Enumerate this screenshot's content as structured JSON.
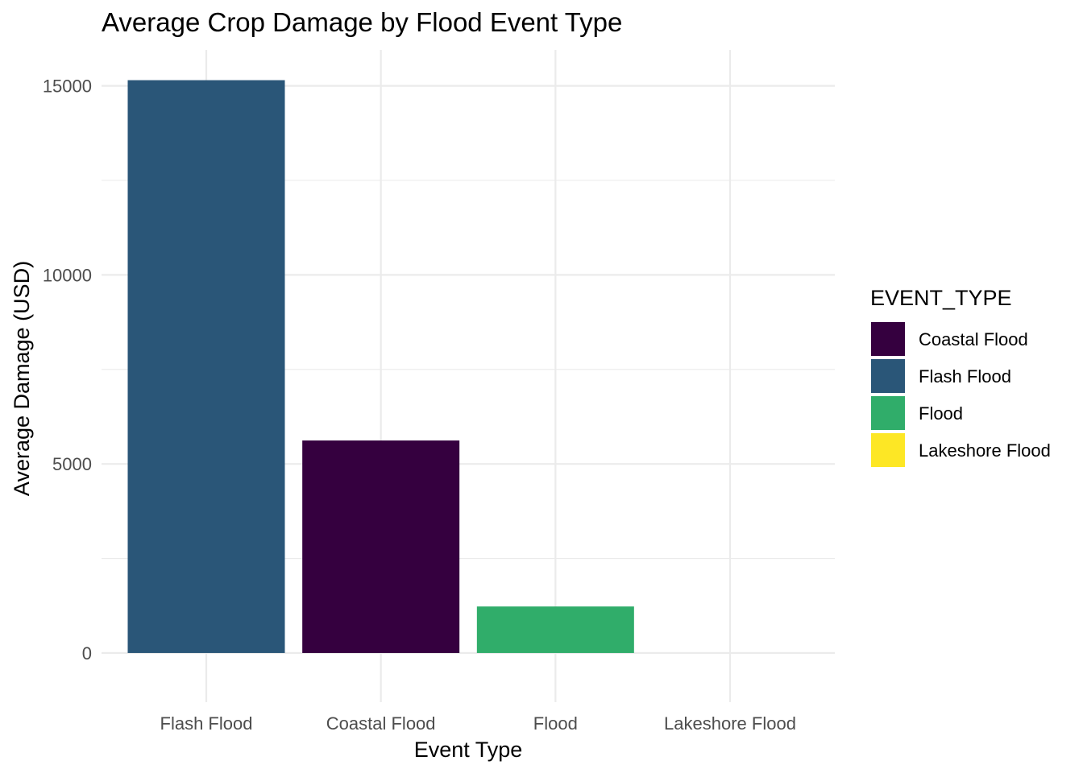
{
  "chart_data": {
    "type": "bar",
    "title": "Average Crop Damage by Flood Event Type",
    "xlabel": "Event Type",
    "ylabel": "Average Damage (USD)",
    "categories": [
      "Flash Flood",
      "Coastal Flood",
      "Flood",
      "Lakeshore Flood"
    ],
    "values": [
      15150,
      5620,
      1230,
      0
    ],
    "bar_colors": [
      "#2A5678",
      "#35003F",
      "#30AD6A",
      "#FDE725"
    ],
    "ylim": [
      -1300,
      15950
    ],
    "yticks": [
      0,
      5000,
      10000,
      15000
    ],
    "ytick_labels": [
      "0",
      "5000",
      "10000",
      "15000"
    ],
    "grid": true,
    "legend": {
      "title": "EVENT_TYPE",
      "placement": "right",
      "entries": [
        {
          "label": "Coastal Flood",
          "color": "#35003F"
        },
        {
          "label": "Flash Flood",
          "color": "#2A5678"
        },
        {
          "label": "Flood",
          "color": "#30AD6A"
        },
        {
          "label": "Lakeshore Flood",
          "color": "#FDE725"
        }
      ]
    }
  }
}
